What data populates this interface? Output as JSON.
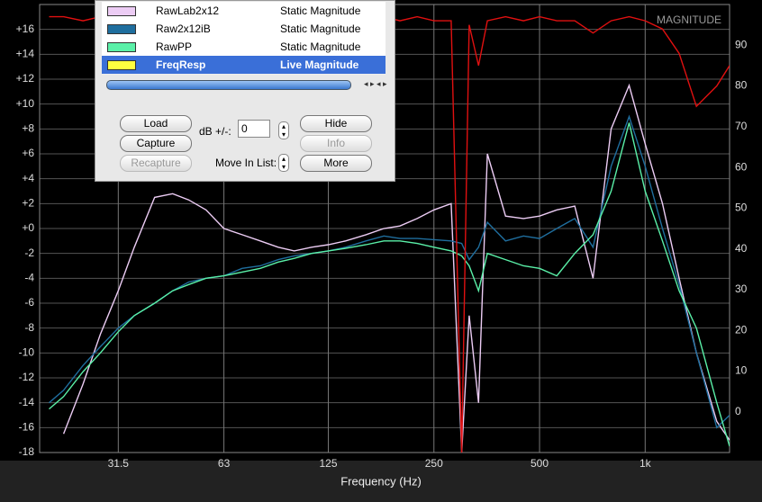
{
  "chart_data": {
    "type": "line",
    "x_label": "Frequency (Hz)",
    "xscale": "log",
    "grid": true,
    "xlim": [
      18.8,
      1740
    ],
    "xticks": [
      31.5,
      63,
      125,
      250,
      500,
      {
        "value": 1000,
        "label": "1k"
      }
    ],
    "ylim": [
      -18,
      18
    ],
    "yticks": [
      {
        "value": 16,
        "label": "+16"
      },
      {
        "value": 14,
        "label": "+14"
      },
      {
        "value": 12,
        "label": "+12"
      },
      {
        "value": 10,
        "label": "+10"
      },
      {
        "value": 8,
        "label": "+8"
      },
      {
        "value": 6,
        "label": "+6"
      },
      {
        "value": 4,
        "label": "+4"
      },
      {
        "value": 2,
        "label": "+2"
      },
      {
        "value": 0,
        "label": "+0"
      },
      -2,
      -4,
      -6,
      -8,
      -10,
      -12,
      -14,
      -16,
      -18
    ],
    "y2lim": [
      -10,
      100
    ],
    "y2ticks": [
      0,
      10,
      20,
      30,
      40,
      50,
      60,
      70,
      80,
      90
    ],
    "x": [
      20,
      22,
      25,
      28,
      31.5,
      35,
      40,
      45,
      50,
      56,
      63,
      71,
      80,
      90,
      100,
      112,
      125,
      140,
      160,
      180,
      200,
      224,
      250,
      280,
      300,
      315,
      335,
      355,
      400,
      450,
      500,
      560,
      630,
      710,
      800,
      900,
      1000,
      1120,
      1250,
      1400,
      1600,
      1740
    ],
    "series": [
      {
        "name": "RawLab2x12",
        "color": "#ecccf4",
        "values": [
          null,
          -16.5,
          -12.5,
          -8.5,
          -5,
          -1.5,
          2.5,
          2.8,
          2.3,
          1.5,
          0,
          -0.5,
          -1,
          -1.5,
          -1.8,
          -1.5,
          -1.3,
          -1,
          -0.5,
          0,
          0.2,
          0.8,
          1.5,
          2,
          -18,
          -7,
          -14,
          6,
          1,
          0.8,
          1,
          1.5,
          1.8,
          -4,
          8,
          11.5,
          6.8,
          2,
          -4,
          -10,
          -15.5,
          -17
        ]
      },
      {
        "name": "Raw2x12iB",
        "color": "#1f6e9e",
        "values": [
          -14,
          -13,
          -11,
          -9.5,
          -8,
          -7,
          -6,
          -5,
          -4.3,
          -4,
          -3.8,
          -3.2,
          -3,
          -2.5,
          -2.2,
          -2,
          -1.8,
          -1.5,
          -1,
          -0.6,
          -0.8,
          -0.8,
          -0.9,
          -1,
          -1.2,
          -2.5,
          -1.5,
          0.5,
          -1,
          -0.6,
          -0.8,
          0,
          0.8,
          -1.5,
          5,
          9,
          5,
          0,
          -4.5,
          -10,
          -16,
          -15
        ]
      },
      {
        "name": "RawPP",
        "color": "#5af0a8",
        "values": [
          -14.5,
          -13.5,
          -11.5,
          -10,
          -8.3,
          -7,
          -6,
          -5,
          -4.5,
          -4,
          -3.8,
          -3.5,
          -3.2,
          -2.7,
          -2.4,
          -2,
          -1.8,
          -1.6,
          -1.3,
          -1,
          -1,
          -1.2,
          -1.5,
          -1.8,
          -2.2,
          -3,
          -5,
          -2,
          -2.5,
          -3,
          -3.2,
          -3.8,
          -2,
          -0.5,
          3,
          8.5,
          3,
          -1,
          -5,
          -8,
          -14,
          -17.5
        ]
      },
      {
        "name": "MAGNITUDE",
        "color": "#e01010",
        "axis": "y2",
        "values": [
          97,
          97,
          96,
          97,
          96,
          97,
          96,
          97,
          96,
          97,
          96,
          97,
          96,
          97,
          96,
          97,
          96,
          97,
          96,
          97,
          96,
          97,
          96,
          96,
          -10,
          95,
          85,
          96,
          97,
          96,
          97,
          96,
          96,
          93,
          96,
          97,
          96,
          94,
          88,
          75,
          80,
          85
        ]
      }
    ]
  },
  "panel": {
    "trace_types": [
      "Static Magnitude",
      "Static Magnitude",
      "Static Magnitude"
    ],
    "live_trace": {
      "name": "FreqResp",
      "type": "Live Magnitude",
      "color": "#ffff40"
    },
    "buttons": {
      "load": "Load",
      "capture": "Capture",
      "recapture": "Recapture",
      "hide": "Hide",
      "info": "Info",
      "more": "More"
    },
    "db_label": "dB +/-:",
    "db_offset": "0",
    "move_label": "Move In List:"
  }
}
